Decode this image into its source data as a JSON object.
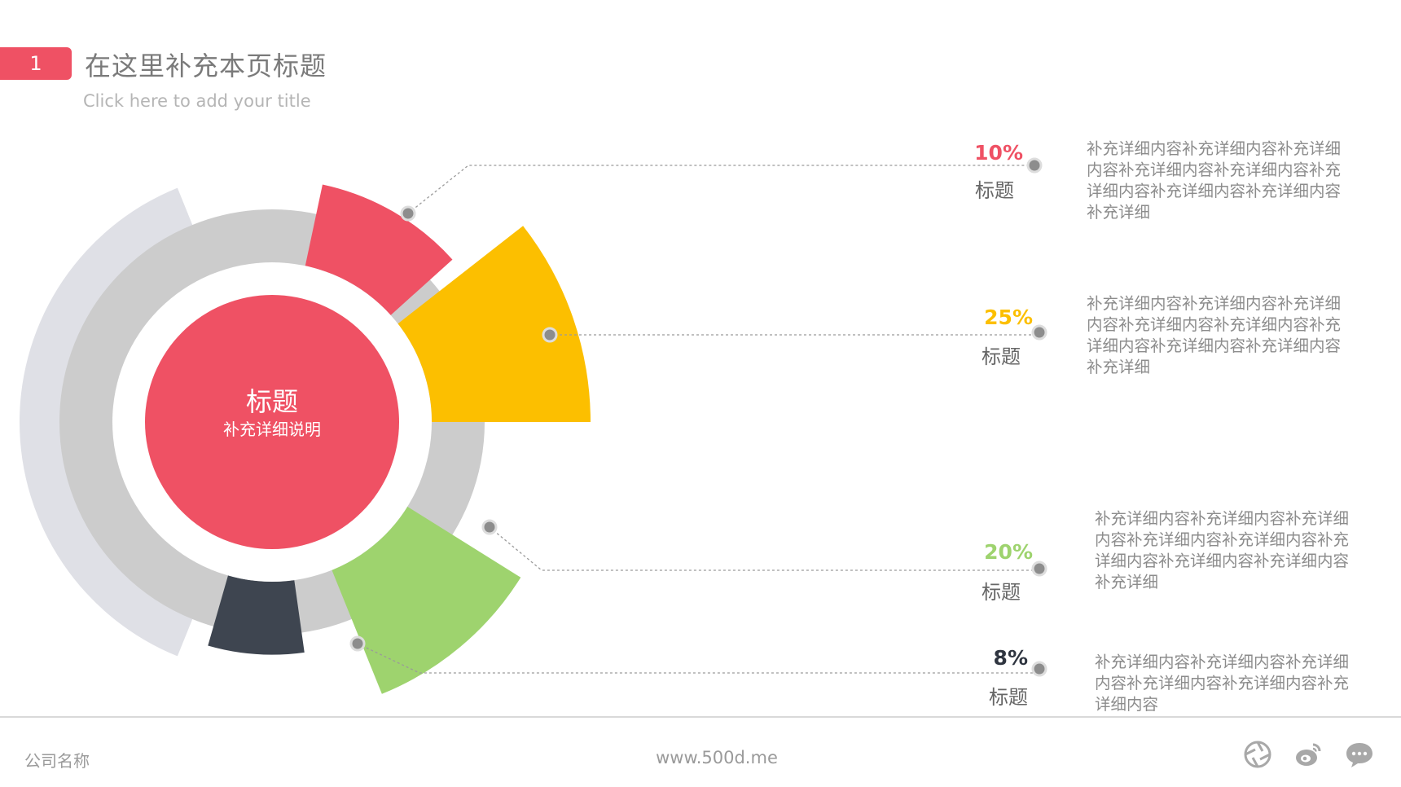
{
  "header": {
    "badge": "1",
    "title": "在这里补充本页标题",
    "subtitle": "Click here to add your title"
  },
  "center": {
    "title": "标题",
    "subtitle": "补充详细说明"
  },
  "chart_data": {
    "type": "pie",
    "variant": "nightingale-rose-segments",
    "slices": [
      {
        "name": "标题",
        "value": 10,
        "label": "10%",
        "color": "#ef5164"
      },
      {
        "name": "标题",
        "value": 25,
        "label": "25%",
        "color": "#fcbf00"
      },
      {
        "name": "标题",
        "value": 20,
        "label": "20%",
        "color": "#9ed36e"
      },
      {
        "name": "标题",
        "value": 8,
        "label": "8%",
        "color": "#3e4550"
      }
    ]
  },
  "items": [
    {
      "pct": "10%",
      "title": "标题",
      "color": "#ef5164",
      "desc": "补充详细内容补充详细内容补充详细内容补充详细内容补充详细内容补充详细内容补充详细内容补充详细内容补充详细"
    },
    {
      "pct": "25%",
      "title": "标题",
      "color": "#fcbf00",
      "desc": "补充详细内容补充详细内容补充详细内容补充详细内容补充详细内容补充详细内容补充详细内容补充详细内容补充详细"
    },
    {
      "pct": "20%",
      "title": "标题",
      "color": "#9ed36e",
      "desc": "补充详细内容补充详细内容补充详细内容补充详细内容补充详细内容补充详细内容补充详细内容补充详细内容补充详细"
    },
    {
      "pct": "8%",
      "title": "标题",
      "color": "#2f3540",
      "desc": "补充详细内容补充详细内容补充详细内容补充详细内容补充详细内容补充详细内容"
    }
  ],
  "footer": {
    "company": "公司名称",
    "website": "www.500d.me",
    "icons": [
      "aperture-icon",
      "weibo-icon",
      "chat-bubble-icon"
    ]
  }
}
